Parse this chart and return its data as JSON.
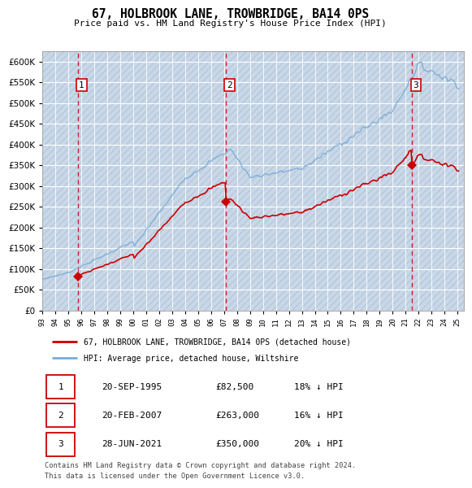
{
  "title": "67, HOLBROOK LANE, TROWBRIDGE, BA14 0PS",
  "subtitle": "Price paid vs. HM Land Registry's House Price Index (HPI)",
  "legend_line1": "67, HOLBROOK LANE, TROWBRIDGE, BA14 0PS (detached house)",
  "legend_line2": "HPI: Average price, detached house, Wiltshire",
  "transactions": [
    {
      "num": 1,
      "date": "20-SEP-1995",
      "price": 82500,
      "pct": "18%",
      "dir": "↓",
      "year": 1995.72
    },
    {
      "num": 2,
      "date": "20-FEB-2007",
      "price": 263000,
      "pct": "16%",
      "dir": "↓",
      "year": 2007.13
    },
    {
      "num": 3,
      "date": "28-JUN-2021",
      "price": 350000,
      "pct": "20%",
      "dir": "↓",
      "year": 2021.49
    }
  ],
  "footnote1": "Contains HM Land Registry data © Crown copyright and database right 2024.",
  "footnote2": "This data is licensed under the Open Government Licence v3.0.",
  "ylim": [
    0,
    625000
  ],
  "yticks": [
    0,
    50000,
    100000,
    150000,
    200000,
    250000,
    300000,
    350000,
    400000,
    450000,
    500000,
    550000,
    600000
  ],
  "hpi_color": "#7aacd6",
  "price_color": "#cc0000",
  "dashed_color": "#cc0000",
  "plot_bg": "#dce8f4",
  "grid_color": "#ffffff",
  "box_color": "#cc0000",
  "hatch_bg": "#c8d8e8"
}
